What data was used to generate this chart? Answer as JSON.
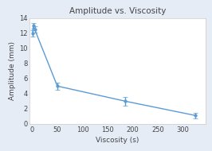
{
  "title": "Amplitude vs. Viscosity",
  "xlabel": "Viscosity (s)",
  "ylabel": "Amplitude (mm)",
  "x": [
    1,
    2,
    5,
    50,
    185,
    325
  ],
  "y": [
    12.0,
    13.0,
    12.5,
    5.0,
    3.0,
    1.1
  ],
  "yerr": [
    0.4,
    0.4,
    0.4,
    0.5,
    0.6,
    0.35
  ],
  "line_color": "#5b9bd5",
  "marker_color": "#5b9bd5",
  "fig_bg_color": "#e5ecf6",
  "plot_bg": "#ffffff",
  "grid_color": "#ffffff",
  "xlim": [
    -5,
    345
  ],
  "ylim": [
    0,
    14
  ],
  "xticks": [
    0,
    50,
    100,
    150,
    200,
    250,
    300
  ],
  "yticks": [
    0,
    2,
    4,
    6,
    8,
    10,
    12,
    14
  ],
  "title_fontsize": 7.5,
  "label_fontsize": 6.5,
  "tick_fontsize": 6,
  "title_color": "#444444",
  "label_color": "#444444",
  "tick_color": "#444444",
  "spine_color": "#cccccc"
}
